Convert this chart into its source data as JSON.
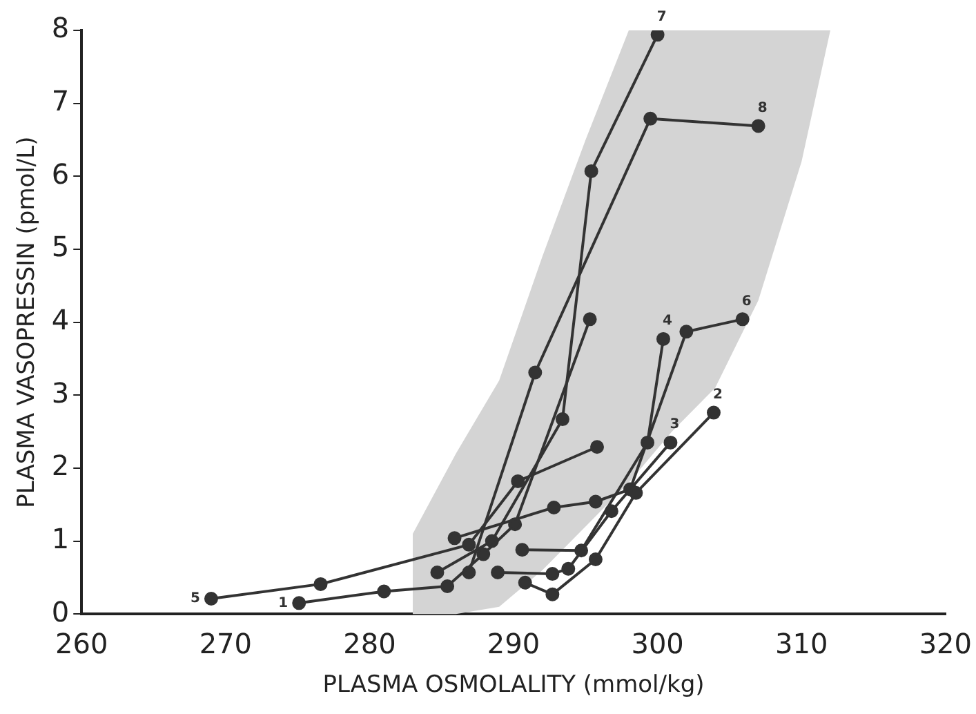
{
  "chart_data": {
    "type": "line",
    "xlabel": "PLASMA OSMOLALITY (mmol/kg)",
    "ylabel": "PLASMA VASOPRESSIN (pmol/L)",
    "xlim": [
      260,
      320
    ],
    "xticks": [
      260,
      270,
      280,
      290,
      300,
      310,
      320
    ],
    "ylim": [
      0,
      8
    ],
    "yticks": [
      0,
      1,
      2,
      3,
      4,
      5,
      6,
      7,
      8
    ],
    "grid": false,
    "legend": false,
    "marker": "circle",
    "series": [
      {
        "color": "#d4d4d4",
        "x": [
          283,
          286,
          289,
          292,
          295,
          298,
          301,
          304,
          307,
          310,
          312
        ],
        "values": [
          null,
          null,
          null,
          null,
          null,
          null,
          null,
          null,
          null,
          null,
          null
        ],
        "lower": [
          0,
          0,
          0.1,
          0.6,
          1.2,
          1.8,
          2.5,
          3.1,
          4.3,
          6.2,
          8
        ],
        "upper": [
          1.1,
          2.2,
          3.2,
          4.9,
          6.5,
          8,
          8,
          8,
          8,
          8,
          8
        ]
      },
      {
        "name": "1",
        "color": "#333333",
        "x": [
          275.1,
          281.0,
          285.4,
          287.9,
          290.1,
          295.3
        ],
        "values": [
          0.15,
          0.31,
          0.38,
          0.82,
          1.23,
          4.04
        ]
      },
      {
        "name": "2",
        "color": "#333333",
        "x": [
          290.8,
          292.7,
          295.7,
          298.5,
          303.9
        ],
        "values": [
          0.43,
          0.27,
          0.75,
          1.66,
          2.76
        ]
      },
      {
        "name": "3",
        "color": "#333333",
        "x": [
          288.9,
          292.7,
          293.8,
          296.8,
          300.9
        ],
        "values": [
          0.57,
          0.55,
          0.62,
          1.41,
          2.35
        ]
      },
      {
        "name": "4",
        "color": "#333333",
        "x": [
          290.6,
          294.7,
          299.3,
          300.4
        ],
        "values": [
          0.88,
          0.87,
          2.35,
          3.77
        ]
      },
      {
        "name": "5",
        "color": "#333333",
        "x": [
          269.0,
          276.6,
          286.9,
          290.3,
          295.8
        ],
        "values": [
          0.21,
          0.41,
          0.95,
          1.82,
          2.29
        ]
      },
      {
        "name": "6",
        "color": "#333333",
        "x": [
          285.9,
          292.8,
          295.7,
          298.1,
          302.0,
          305.9
        ],
        "values": [
          1.04,
          1.46,
          1.54,
          1.71,
          3.87,
          4.04
        ]
      },
      {
        "name": "7",
        "color": "#333333",
        "x": [
          284.7,
          288.5,
          293.4,
          295.4,
          300.0
        ],
        "values": [
          0.57,
          1.0,
          2.67,
          6.07,
          7.94
        ]
      },
      {
        "name": "8",
        "color": "#333333",
        "x": [
          286.9,
          291.5,
          299.5,
          307.0
        ],
        "values": [
          0.57,
          3.31,
          6.79,
          6.69
        ]
      }
    ]
  }
}
